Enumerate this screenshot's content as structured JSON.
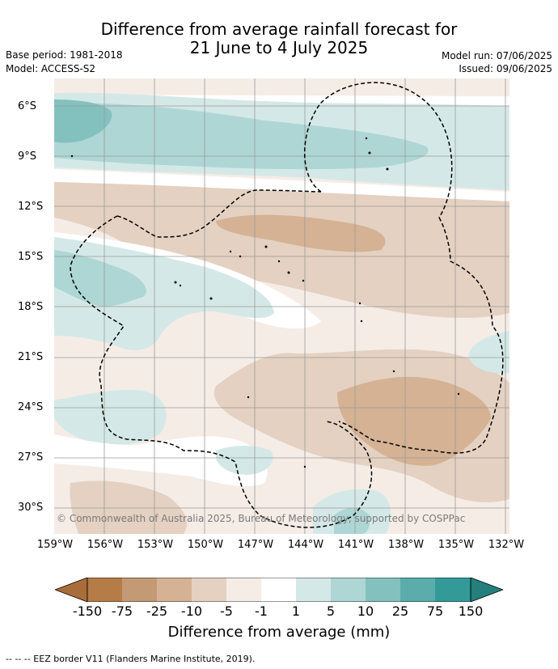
{
  "header": {
    "title_line1": "Difference from average rainfall forecast for",
    "title_line2": "21 June to 4 July 2025",
    "base_period": "Base period: 1981-2018",
    "model": "Model: ACCESS-S2",
    "model_run": "Model run: 07/06/2025",
    "issued": "Issued: 09/06/2025"
  },
  "map": {
    "lat_labels": [
      "6°S",
      "9°S",
      "12°S",
      "15°S",
      "18°S",
      "21°S",
      "24°S",
      "27°S",
      "30°S"
    ],
    "lon_labels": [
      "159°W",
      "156°W",
      "153°W",
      "150°W",
      "147°W",
      "144°W",
      "141°W",
      "138°W",
      "135°W",
      "132°W"
    ],
    "copyright": "© Commonwealth of Australia 2025, Bureau of Meteorology, supported by COSPPac",
    "category_colors": {
      "le_-150": "#a86d3a",
      "-150_-75": "#b57c47",
      "-75_-25": "#c39a73",
      "-25_-10": "#d4b293",
      "-10_-5": "#e4d1c1",
      "-5_-1": "#f5ece6",
      "-1_1": "#ffffff",
      "1_5": "#d4e9e7",
      "5_10": "#aed6d4",
      "10_25": "#83c1bf",
      "25_75": "#5aadab",
      "75_150": "#339a98",
      "ge_150": "#257f7c"
    }
  },
  "legend": {
    "ticks": [
      "-150",
      "-75",
      "-25",
      "-10",
      "-5",
      "-1",
      "1",
      "5",
      "10",
      "25",
      "75",
      "150"
    ],
    "title": "Difference from average (mm)",
    "footnote": "--  --  -- EEZ border V11 (Flanders Marine Institute, 2019)."
  }
}
